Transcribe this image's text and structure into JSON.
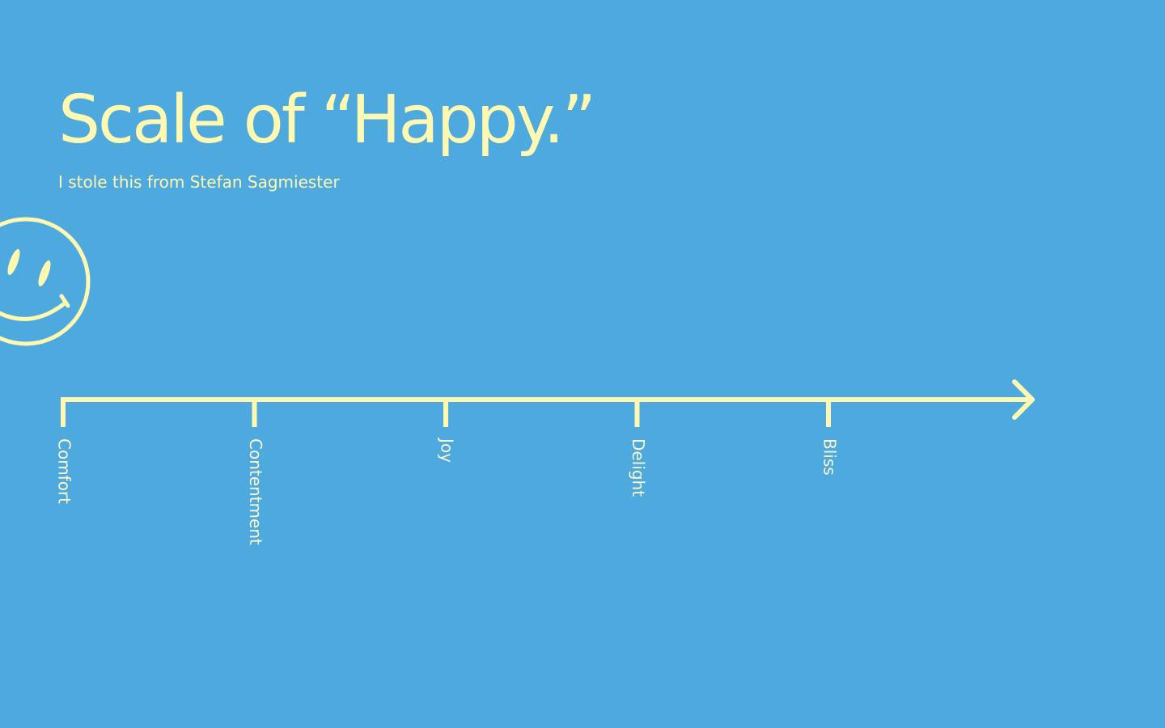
{
  "header": {
    "title": "Scale of “Happy.”",
    "subtitle": "I stole this from Stefan Sagmiester"
  },
  "scale": {
    "labels": [
      "Comfort",
      "Contentment",
      "Joy",
      "Delight",
      "Bliss"
    ]
  }
}
